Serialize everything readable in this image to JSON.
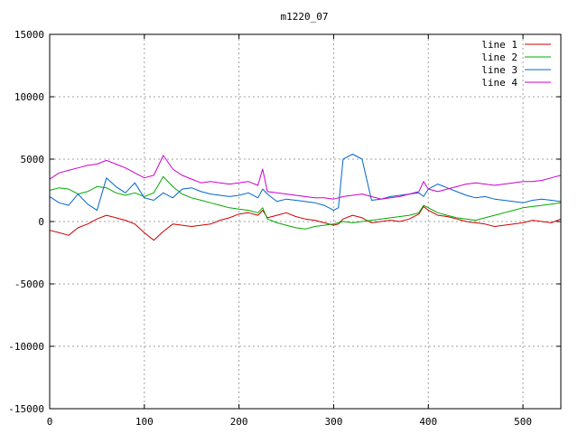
{
  "chart_data": {
    "type": "line",
    "title": "m1220_07",
    "xlabel": "",
    "ylabel": "",
    "xlim": [
      0,
      540
    ],
    "ylim": [
      -15000,
      15000
    ],
    "grid": true,
    "legend_position": "top-right",
    "x_ticks": [
      0,
      100,
      200,
      300,
      400,
      500
    ],
    "y_ticks": [
      -15000,
      -10000,
      -5000,
      0,
      5000,
      10000,
      15000
    ],
    "x_tick_labels": [
      "0",
      "100",
      "200",
      "300",
      "400",
      "500"
    ],
    "y_tick_labels": [
      "-15000",
      "-10000",
      "-5000",
      "0",
      "5000",
      "10000",
      "15000"
    ],
    "x": [
      0,
      10,
      20,
      30,
      40,
      50,
      60,
      70,
      80,
      90,
      100,
      110,
      120,
      130,
      140,
      150,
      160,
      170,
      180,
      190,
      200,
      210,
      220,
      225,
      230,
      240,
      250,
      260,
      270,
      280,
      290,
      300,
      305,
      310,
      320,
      330,
      340,
      350,
      360,
      370,
      380,
      390,
      395,
      400,
      410,
      420,
      430,
      440,
      450,
      460,
      470,
      480,
      490,
      500,
      510,
      520,
      530,
      540
    ],
    "series": [
      {
        "name": "line 1",
        "color": "#cc0000",
        "values": [
          -700,
          -900,
          -1100,
          -500,
          -200,
          200,
          500,
          300,
          100,
          -200,
          -900,
          -1500,
          -800,
          -200,
          -300,
          -400,
          -300,
          -200,
          100,
          300,
          600,
          700,
          500,
          900,
          300,
          500,
          700,
          400,
          200,
          100,
          -100,
          -300,
          -200,
          200,
          500,
          300,
          -100,
          0,
          100,
          0,
          200,
          600,
          1200,
          900,
          500,
          400,
          200,
          0,
          -100,
          -200,
          -400,
          -300,
          -200,
          -100,
          100,
          0,
          -100,
          200
        ]
      },
      {
        "name": "line 2",
        "color": "#00aa00",
        "values": [
          2500,
          2700,
          2600,
          2200,
          2400,
          2800,
          2700,
          2300,
          2100,
          2300,
          2000,
          2300,
          3600,
          2800,
          2200,
          1900,
          1700,
          1500,
          1300,
          1100,
          1000,
          900,
          700,
          1100,
          200,
          -100,
          -300,
          -500,
          -600,
          -400,
          -300,
          -200,
          -100,
          0,
          -100,
          0,
          100,
          200,
          300,
          400,
          500,
          700,
          1300,
          1100,
          700,
          500,
          300,
          200,
          100,
          300,
          500,
          700,
          900,
          1100,
          1200,
          1300,
          1400,
          1500
        ]
      },
      {
        "name": "line 3",
        "color": "#0066cc",
        "values": [
          2000,
          1500,
          1300,
          2200,
          1400,
          900,
          3500,
          2800,
          2300,
          3100,
          1900,
          1700,
          2300,
          1900,
          2600,
          2700,
          2400,
          2200,
          2100,
          2000,
          2100,
          2300,
          1900,
          2600,
          2200,
          1600,
          1800,
          1700,
          1600,
          1500,
          1300,
          900,
          1100,
          5000,
          5400,
          5000,
          1700,
          1800,
          2000,
          2100,
          2200,
          2300,
          2000,
          2600,
          3000,
          2700,
          2400,
          2100,
          1900,
          2000,
          1800,
          1700,
          1600,
          1500,
          1700,
          1800,
          1700,
          1600
        ]
      },
      {
        "name": "line 4",
        "color": "#cc00cc",
        "values": [
          3400,
          3900,
          4100,
          4300,
          4500,
          4600,
          4900,
          4600,
          4300,
          3900,
          3500,
          3700,
          5300,
          4200,
          3700,
          3400,
          3100,
          3200,
          3100,
          3000,
          3100,
          3200,
          2900,
          4200,
          2400,
          2300,
          2200,
          2100,
          2000,
          1900,
          1900,
          1800,
          1900,
          2000,
          2100,
          2200,
          2000,
          1800,
          1900,
          2000,
          2200,
          2400,
          3200,
          2600,
          2400,
          2600,
          2800,
          3000,
          3100,
          3000,
          2900,
          3000,
          3100,
          3200,
          3200,
          3300,
          3500,
          3700
        ]
      }
    ]
  }
}
